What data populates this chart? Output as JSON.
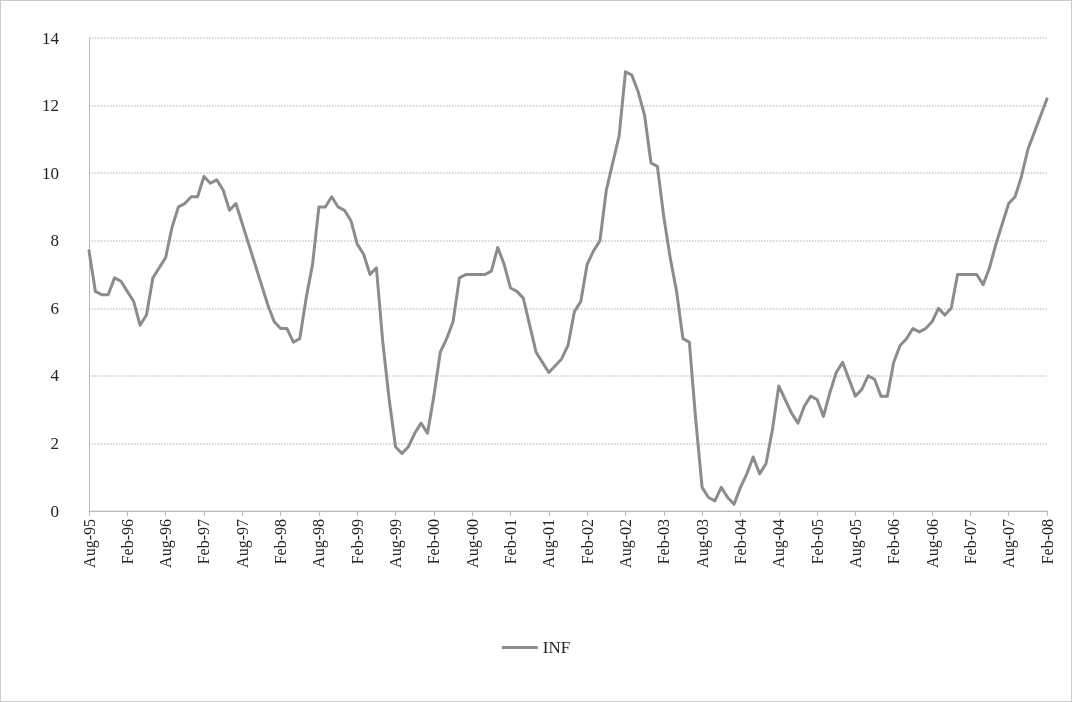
{
  "chart_data": {
    "type": "line",
    "categories": [
      "Aug-95",
      null,
      null,
      null,
      null,
      null,
      "Feb-96",
      null,
      null,
      null,
      null,
      null,
      "Aug-96",
      null,
      null,
      null,
      null,
      null,
      "Feb-97",
      null,
      null,
      null,
      null,
      null,
      "Aug-97",
      null,
      null,
      null,
      null,
      null,
      "Feb-98",
      null,
      null,
      null,
      null,
      null,
      "Aug-98",
      null,
      null,
      null,
      null,
      null,
      "Feb-99",
      null,
      null,
      null,
      null,
      null,
      "Aug-99",
      null,
      null,
      null,
      null,
      null,
      "Feb-00",
      null,
      null,
      null,
      null,
      null,
      "Aug-00",
      null,
      null,
      null,
      null,
      null,
      "Feb-01",
      null,
      null,
      null,
      null,
      null,
      "Aug-01",
      null,
      null,
      null,
      null,
      null,
      "Feb-02",
      null,
      null,
      null,
      null,
      null,
      "Aug-02",
      null,
      null,
      null,
      null,
      null,
      "Feb-03",
      null,
      null,
      null,
      null,
      null,
      "Aug-03",
      null,
      null,
      null,
      null,
      null,
      "Feb-04",
      null,
      null,
      null,
      null,
      null,
      "Aug-04",
      null,
      null,
      null,
      null,
      null,
      "Feb-05",
      null,
      null,
      null,
      null,
      null,
      "Aug-05",
      null,
      null,
      null,
      null,
      null,
      "Feb-06",
      null,
      null,
      null,
      null,
      null,
      "Aug-06",
      null,
      null,
      null,
      null,
      null,
      "Feb-07",
      null,
      null,
      null,
      null,
      null,
      "Aug-07",
      null,
      null,
      null,
      null,
      null,
      "Feb-08"
    ],
    "series": [
      {
        "name": "INF",
        "color": "#8c8c8c",
        "values": [
          7.7,
          6.5,
          6.4,
          6.4,
          6.9,
          6.8,
          6.5,
          6.2,
          5.5,
          5.8,
          6.9,
          7.2,
          7.5,
          8.4,
          9.0,
          9.1,
          9.3,
          9.3,
          9.9,
          9.7,
          9.8,
          9.5,
          8.9,
          9.1,
          8.5,
          7.9,
          7.3,
          6.7,
          6.1,
          5.6,
          5.4,
          5.4,
          5.0,
          5.1,
          6.3,
          7.3,
          9.0,
          9.0,
          9.3,
          9.0,
          8.9,
          8.6,
          7.9,
          7.6,
          7.0,
          7.2,
          5.0,
          3.3,
          1.9,
          1.7,
          1.9,
          2.3,
          2.6,
          2.3,
          3.4,
          4.7,
          5.1,
          5.6,
          6.9,
          7.0,
          7.0,
          7.0,
          7.0,
          7.1,
          7.8,
          7.3,
          6.6,
          6.5,
          6.3,
          5.5,
          4.7,
          4.4,
          4.1,
          4.3,
          4.5,
          4.9,
          5.9,
          6.2,
          7.3,
          7.7,
          8.0,
          9.5,
          10.3,
          11.1,
          13.0,
          12.9,
          12.4,
          11.7,
          10.3,
          10.2,
          8.7,
          7.5,
          6.5,
          5.1,
          5.0,
          2.7,
          0.7,
          0.4,
          0.3,
          0.7,
          0.4,
          0.2,
          0.7,
          1.1,
          1.6,
          1.1,
          1.4,
          2.4,
          3.7,
          3.3,
          2.9,
          2.6,
          3.1,
          3.4,
          3.3,
          2.8,
          3.5,
          4.1,
          4.4,
          3.9,
          3.4,
          3.6,
          4.0,
          3.9,
          3.4,
          3.4,
          4.4,
          4.9,
          5.1,
          5.4,
          5.3,
          5.4,
          5.6,
          6.0,
          5.8,
          6.0,
          7.0,
          7.0,
          7.0,
          7.0,
          6.7,
          7.2,
          7.9,
          8.5,
          9.1,
          9.3,
          9.9,
          10.7,
          11.2,
          11.7,
          12.2
        ]
      }
    ],
    "ylim": [
      0,
      14
    ],
    "yticks": [
      0,
      2,
      4,
      6,
      8,
      10,
      12,
      14
    ],
    "grid": "y",
    "legend": "bottom",
    "marker": "none",
    "line_style": "solid"
  }
}
